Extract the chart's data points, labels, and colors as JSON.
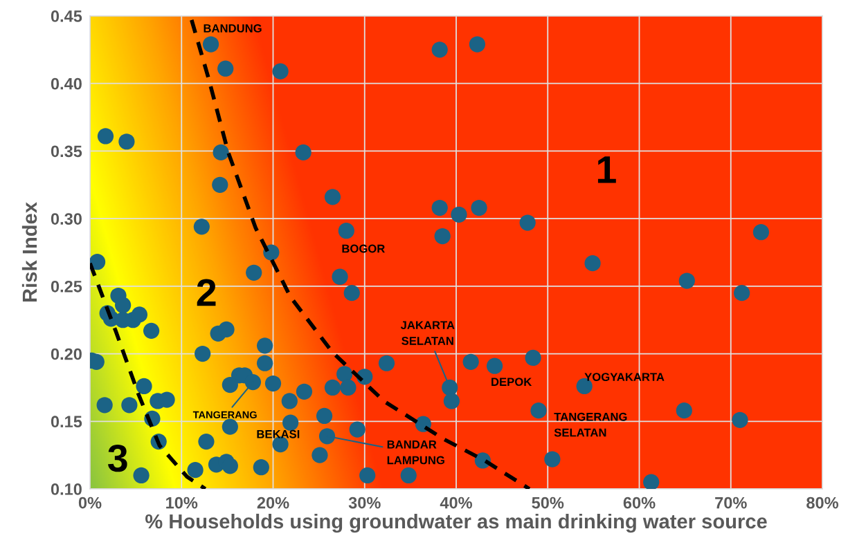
{
  "chart_data": {
    "type": "scatter",
    "xlabel": "% Households using groundwater as main drinking water source",
    "ylabel": "Risk Index",
    "xlim": [
      0,
      80
    ],
    "ylim": [
      0.1,
      0.45
    ],
    "xticks": [
      {
        "value": 0,
        "label": "0%"
      },
      {
        "value": 10,
        "label": "10%"
      },
      {
        "value": 20,
        "label": "20%"
      },
      {
        "value": 30,
        "label": "30%"
      },
      {
        "value": 40,
        "label": "40%"
      },
      {
        "value": 50,
        "label": "50%"
      },
      {
        "value": 60,
        "label": "60%"
      },
      {
        "value": 70,
        "label": "70%"
      },
      {
        "value": 80,
        "label": "80%"
      }
    ],
    "yticks": [
      {
        "value": 0.1,
        "label": "0.10"
      },
      {
        "value": 0.15,
        "label": "0.15"
      },
      {
        "value": 0.2,
        "label": "0.20"
      },
      {
        "value": 0.25,
        "label": "0.25"
      },
      {
        "value": 0.3,
        "label": "0.30"
      },
      {
        "value": 0.35,
        "label": "0.35"
      },
      {
        "value": 0.4,
        "label": "0.40"
      },
      {
        "value": 0.45,
        "label": "0.45"
      }
    ],
    "grid": true,
    "series": [
      {
        "color": "#1b6386",
        "marker": "circle",
        "x": [
          13.2,
          14.8,
          20.8,
          38.2,
          42.3,
          1.7,
          4.0,
          14.3,
          23.3,
          14.2,
          26.5,
          12.2,
          28.0,
          38.2,
          40.3,
          42.5,
          38.5,
          47.8,
          73.3,
          19.8,
          0.8,
          17.9,
          27.3,
          28.6,
          54.9,
          65.2,
          71.2,
          1.9,
          2.3,
          3.1,
          3.6,
          3.6,
          4.7,
          5.4,
          6.7,
          14.0,
          14.9,
          19.1,
          12.3,
          0.2,
          0.7,
          19.1,
          32.4,
          41.6,
          44.2,
          48.4,
          16.3,
          16.9,
          15.3,
          17.8,
          20.0,
          26.5,
          27.8,
          28.2,
          30.0,
          39.3,
          39.5,
          36.4,
          54.0,
          49.0,
          64.9,
          71.0,
          5.9,
          1.6,
          4.3,
          7.4,
          8.4,
          6.8,
          7.5,
          5.6,
          11.5,
          12.7,
          13.8,
          14.9,
          15.3,
          15.3,
          18.7,
          20.8,
          21.9,
          21.8,
          23.4,
          25.6,
          25.1,
          25.9,
          29.2,
          30.3,
          34.8,
          42.9,
          50.5,
          61.3
        ],
        "values": [
          0.429,
          0.411,
          0.409,
          0.425,
          0.429,
          0.361,
          0.357,
          0.349,
          0.349,
          0.325,
          0.316,
          0.294,
          0.291,
          0.308,
          0.303,
          0.308,
          0.287,
          0.297,
          0.29,
          0.275,
          0.268,
          0.26,
          0.257,
          0.245,
          0.267,
          0.254,
          0.245,
          0.23,
          0.226,
          0.243,
          0.236,
          0.225,
          0.225,
          0.229,
          0.217,
          0.215,
          0.218,
          0.206,
          0.2,
          0.195,
          0.194,
          0.193,
          0.193,
          0.194,
          0.191,
          0.197,
          0.184,
          0.184,
          0.177,
          0.179,
          0.178,
          0.175,
          0.185,
          0.175,
          0.183,
          0.175,
          0.165,
          0.148,
          0.176,
          0.158,
          0.158,
          0.151,
          0.176,
          0.162,
          0.162,
          0.165,
          0.166,
          0.152,
          0.135,
          0.11,
          0.114,
          0.135,
          0.118,
          0.12,
          0.117,
          0.146,
          0.116,
          0.133,
          0.149,
          0.165,
          0.172,
          0.154,
          0.125,
          0.139,
          0.144,
          0.11,
          0.11,
          0.121,
          0.122,
          0.105
        ]
      },
      {
        "type": "line",
        "color": "#000000",
        "line_style": "dashed",
        "marker": "none",
        "x": [
          11.1,
          12.9,
          15.1,
          18.1,
          21.9,
          26.5,
          32.1,
          38.6,
          43.1,
          48.0
        ],
        "values": [
          0.447,
          0.405,
          0.349,
          0.293,
          0.242,
          0.201,
          0.165,
          0.137,
          0.121,
          0.1
        ]
      },
      {
        "type": "line",
        "color": "#000000",
        "line_style": "dashed",
        "marker": "none",
        "x": [
          0.0,
          2.8,
          5.3,
          7.6,
          10.6,
          12.6
        ],
        "values": [
          0.267,
          0.217,
          0.17,
          0.132,
          0.109,
          0.1
        ]
      }
    ],
    "annotations": [
      {
        "text": "BANDUNG",
        "x": 13.2,
        "y": 0.429
      },
      {
        "text": "BOGOR",
        "x": 28.0,
        "y": 0.291
      },
      {
        "text": "JAKARTA\nSELATAN",
        "x": 39.3,
        "y": 0.175
      },
      {
        "text": "DEPOK",
        "x": 44.2,
        "y": 0.191
      },
      {
        "text": "YOGYAKARTA",
        "x": 54.0,
        "y": 0.176
      },
      {
        "text": "TANGERANG\nSELATAN",
        "x": 49.0,
        "y": 0.158
      },
      {
        "text": "TANGERANG",
        "x": 17.8,
        "y": 0.179
      },
      {
        "text": "BEKASI",
        "x": 20.8,
        "y": 0.133
      },
      {
        "text": "BANDAR\nLAMPUNG",
        "x": 25.9,
        "y": 0.139
      },
      "1",
      "2",
      "3"
    ]
  }
}
